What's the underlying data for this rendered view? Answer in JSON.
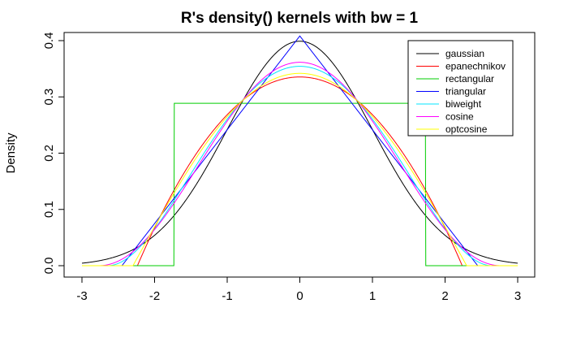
{
  "chart_data": {
    "type": "line",
    "title": "R's density() kernels with bw = 1",
    "xlabel": "",
    "ylabel": "Density",
    "xlim": [
      -3,
      3
    ],
    "ylim": [
      0,
      0.4
    ],
    "xticks": [
      "-3",
      "-2",
      "-1",
      "0",
      "1",
      "2",
      "3"
    ],
    "yticks": [
      "0.0",
      "0.1",
      "0.2",
      "0.3",
      "0.4"
    ],
    "grid": false,
    "legend_position": "top-right",
    "series": [
      {
        "name": "gaussian",
        "color": "#000000",
        "kernel": "gaussian",
        "support": 3,
        "peak": 0.399
      },
      {
        "name": "epanechnikov",
        "color": "#ff0000",
        "kernel": "epanechnikov",
        "support": 2.236,
        "peak": 0.335
      },
      {
        "name": "rectangular",
        "color": "#00cd00",
        "kernel": "rectangular",
        "support": 1.732,
        "peak": 0.289
      },
      {
        "name": "triangular",
        "color": "#0000ff",
        "kernel": "triangular",
        "support": 2.449,
        "peak": 0.408
      },
      {
        "name": "biweight",
        "color": "#00e5ff",
        "kernel": "biweight",
        "support": 2.646,
        "peak": 0.354
      },
      {
        "name": "cosine",
        "color": "#ff00ff",
        "kernel": "cosine",
        "support": 2.766,
        "peak": 0.361
      },
      {
        "name": "optcosine",
        "color": "#ffff00",
        "kernel": "optcosine",
        "support": 2.297,
        "peak": 0.342
      }
    ]
  }
}
